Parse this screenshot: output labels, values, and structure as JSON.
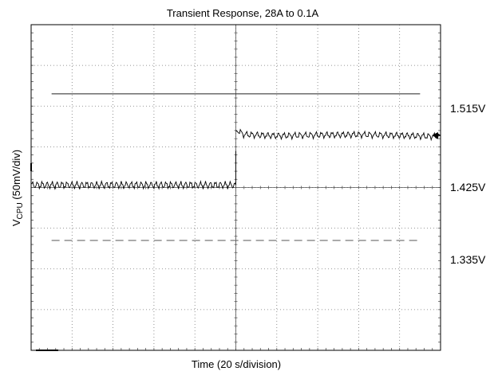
{
  "chart_data": {
    "type": "line",
    "title": "Transient Response, 28A to 0.1A",
    "xlabel": "Time (20 s/division)",
    "ylabel": "VCPU (50mV/div)",
    "ylabel_main": "V",
    "ylabel_sub": "CPU",
    "ylabel_rest": " (50mV/div)",
    "x_divisions": 10,
    "y_divisions": 8,
    "x_units_per_div": 20,
    "y_units_per_div": 0.05,
    "xlim": [
      0,
      200
    ],
    "ylim": [
      1.2,
      1.6
    ],
    "grid": true,
    "reference_lines": [
      {
        "label": "1.515V",
        "value": 1.515,
        "style": "solid",
        "x_range": [
          10,
          190
        ]
      },
      {
        "label": "1.425V",
        "value": 1.425,
        "style": "none"
      },
      {
        "label": "1.335V",
        "value": 1.335,
        "style": "dashed",
        "x_range": [
          10,
          190
        ]
      }
    ],
    "series": [
      {
        "values_description": "waveform",
        "points": [
          [
            0,
            1.403
          ],
          [
            100,
            1.403
          ],
          [
            100,
            1.445
          ],
          [
            101,
            1.47
          ],
          [
            102,
            1.468
          ],
          [
            104,
            1.465
          ],
          [
            110,
            1.4645
          ],
          [
            120,
            1.4635
          ],
          [
            140,
            1.4645
          ],
          [
            160,
            1.465
          ],
          [
            180,
            1.464
          ],
          [
            200,
            1.4625
          ]
        ]
      }
    ]
  }
}
